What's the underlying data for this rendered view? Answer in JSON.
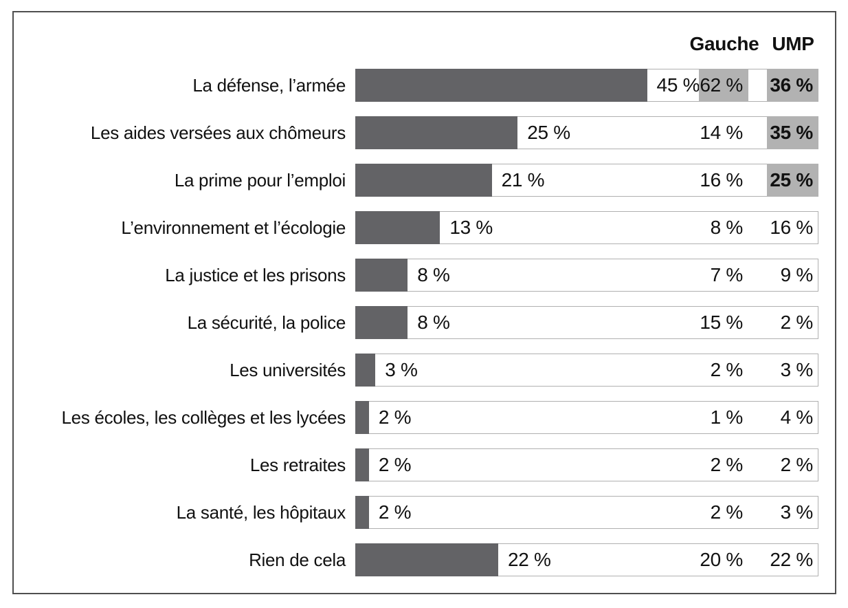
{
  "chart_data": {
    "type": "bar",
    "title": "",
    "unit": "%",
    "columns": [
      "Gauche",
      "UMP"
    ],
    "x_max": 71.4,
    "legend_position": "top-right",
    "grid": false,
    "highlight_color": "#b2b2b2",
    "bar_color": "#636366",
    "categories": [
      "La défense, l’armée",
      "Les aides versées aux chômeurs",
      "La prime pour l’emploi",
      "L’environnement et l’écologie",
      "La justice et les prisons",
      "La sécurité, la police",
      "Les universités",
      "Les écoles, les collèges et les lycées",
      "Les retraites",
      "La santé, les hôpitaux",
      "Rien de cela"
    ],
    "rows": [
      {
        "label": "La défense, l’armée",
        "total": 45,
        "total_label": "45 %",
        "gauche": 62,
        "gauche_label": "62 %",
        "gauche_highlight": true,
        "ump": 36,
        "ump_label": "36 %",
        "ump_highlight": true,
        "ump_bold": true
      },
      {
        "label": "Les aides versées aux chômeurs",
        "total": 25,
        "total_label": "25 %",
        "gauche": 14,
        "gauche_label": "14 %",
        "gauche_highlight": false,
        "ump": 35,
        "ump_label": "35 %",
        "ump_highlight": true,
        "ump_bold": true
      },
      {
        "label": "La prime pour l’emploi",
        "total": 21,
        "total_label": "21 %",
        "gauche": 16,
        "gauche_label": "16 %",
        "gauche_highlight": false,
        "ump": 25,
        "ump_label": "25 %",
        "ump_highlight": true,
        "ump_bold": true
      },
      {
        "label": "L’environnement et l’écologie",
        "total": 13,
        "total_label": "13 %",
        "gauche": 8,
        "gauche_label": "8 %",
        "gauche_highlight": false,
        "ump": 16,
        "ump_label": "16 %",
        "ump_highlight": false,
        "ump_bold": false
      },
      {
        "label": "La justice et les prisons",
        "total": 8,
        "total_label": "8 %",
        "gauche": 7,
        "gauche_label": "7 %",
        "gauche_highlight": false,
        "ump": 9,
        "ump_label": "9 %",
        "ump_highlight": false,
        "ump_bold": false
      },
      {
        "label": "La sécurité, la police",
        "total": 8,
        "total_label": "8 %",
        "gauche": 15,
        "gauche_label": "15 %",
        "gauche_highlight": false,
        "ump": 2,
        "ump_label": "2 %",
        "ump_highlight": false,
        "ump_bold": false
      },
      {
        "label": "Les universités",
        "total": 3,
        "total_label": "3 %",
        "gauche": 2,
        "gauche_label": "2 %",
        "gauche_highlight": false,
        "ump": 3,
        "ump_label": "3 %",
        "ump_highlight": false,
        "ump_bold": false
      },
      {
        "label": "Les écoles, les collèges et les lycées",
        "total": 2,
        "total_label": "2 %",
        "gauche": 1,
        "gauche_label": "1 %",
        "gauche_highlight": false,
        "ump": 4,
        "ump_label": "4 %",
        "ump_highlight": false,
        "ump_bold": false
      },
      {
        "label": "Les retraites",
        "total": 2,
        "total_label": "2 %",
        "gauche": 2,
        "gauche_label": "2 %",
        "gauche_highlight": false,
        "ump": 2,
        "ump_label": "2 %",
        "ump_highlight": false,
        "ump_bold": false
      },
      {
        "label": "La santé, les hôpitaux",
        "total": 2,
        "total_label": "2 %",
        "gauche": 2,
        "gauche_label": "2 %",
        "gauche_highlight": false,
        "ump": 3,
        "ump_label": "3 %",
        "ump_highlight": false,
        "ump_bold": false
      },
      {
        "label": "Rien de cela",
        "total": 22,
        "total_label": "22 %",
        "gauche": 20,
        "gauche_label": "20 %",
        "gauche_highlight": false,
        "ump": 22,
        "ump_label": "22 %",
        "ump_highlight": false,
        "ump_bold": false
      }
    ]
  }
}
